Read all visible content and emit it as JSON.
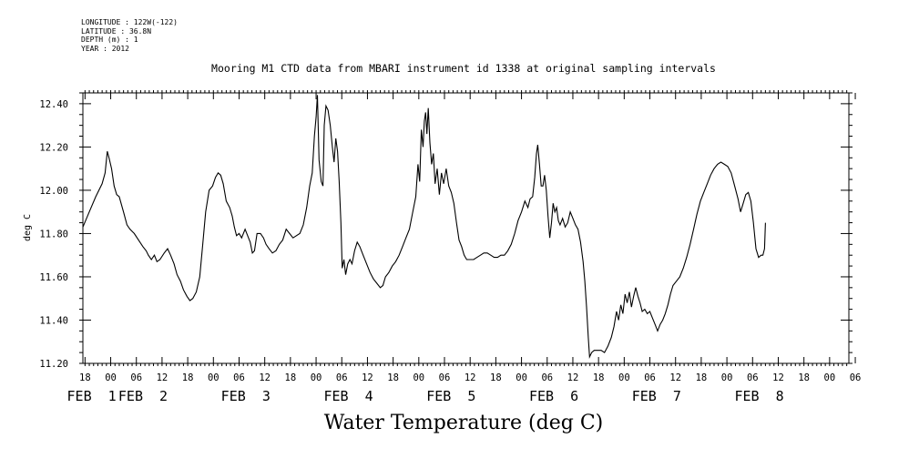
{
  "meta": {
    "longitude": "LONGITUDE : 122W(-122)",
    "latitude": "LATITUDE : 36.8N",
    "depth": "DEPTH (m) : 1",
    "year": "YEAR : 2012"
  },
  "chart_data": {
    "type": "line",
    "title": "Mooring M1 CTD data from MBARI instrument id 1338 at original sampling intervals",
    "xlabel": "Water Temperature (deg C)",
    "ylabel": "deg C",
    "ylim": [
      11.2,
      12.45
    ],
    "xlim": [
      -6.5,
      172.5
    ],
    "x_unit": "hours since FEB 1 00:00 (2012)",
    "grid": false,
    "yticks": [
      "11.20",
      "11.40",
      "11.60",
      "11.80",
      "12.00",
      "12.20",
      "12.40"
    ],
    "xtick_hours": [
      "18",
      "00",
      "06",
      "12",
      "18",
      "00",
      "06",
      "12",
      "18",
      "00",
      "06",
      "12",
      "18",
      "00",
      "06",
      "12",
      "18",
      "00",
      "06",
      "12",
      "18",
      "00",
      "06",
      "12",
      "18",
      "00",
      "06",
      "12",
      "18",
      "00",
      "06"
    ],
    "date_labels": [
      {
        "text": "FEB  1",
        "hour": 0
      },
      {
        "text": "FEB  2",
        "hour": 12
      },
      {
        "text": "FEB  3",
        "hour": 36
      },
      {
        "text": "FEB  4",
        "hour": 60
      },
      {
        "text": "FEB  5",
        "hour": 84
      },
      {
        "text": "FEB  6",
        "hour": 108
      },
      {
        "text": "FEB  7",
        "hour": 132
      },
      {
        "text": "FEB  8",
        "hour": 156
      }
    ],
    "series": [
      {
        "points": [
          [
            -6.5,
            11.83
          ],
          [
            -5,
            11.9
          ],
          [
            -3.5,
            11.97
          ],
          [
            -2,
            12.03
          ],
          [
            -1.3,
            12.08
          ],
          [
            -0.8,
            12.18
          ],
          [
            -0.4,
            12.15
          ],
          [
            0.2,
            12.1
          ],
          [
            0.8,
            12.02
          ],
          [
            1.4,
            11.98
          ],
          [
            2,
            11.97
          ],
          [
            3,
            11.9
          ],
          [
            3.8,
            11.84
          ],
          [
            4.5,
            11.82
          ],
          [
            5.5,
            11.8
          ],
          [
            6.5,
            11.77
          ],
          [
            7.5,
            11.74
          ],
          [
            8.3,
            11.72
          ],
          [
            8.8,
            11.7
          ],
          [
            9.5,
            11.68
          ],
          [
            10.2,
            11.7
          ],
          [
            10.8,
            11.67
          ],
          [
            11.5,
            11.68
          ],
          [
            12.5,
            11.71
          ],
          [
            13.3,
            11.73
          ],
          [
            14,
            11.7
          ],
          [
            14.8,
            11.66
          ],
          [
            15.5,
            11.61
          ],
          [
            16.3,
            11.58
          ],
          [
            17,
            11.54
          ],
          [
            17.8,
            11.51
          ],
          [
            18.5,
            11.49
          ],
          [
            19.2,
            11.5
          ],
          [
            20,
            11.53
          ],
          [
            20.8,
            11.6
          ],
          [
            21.5,
            11.75
          ],
          [
            22.2,
            11.9
          ],
          [
            23,
            12.0
          ],
          [
            23.8,
            12.02
          ],
          [
            24.5,
            12.06
          ],
          [
            25.1,
            12.08
          ],
          [
            25.7,
            12.07
          ],
          [
            26.3,
            12.03
          ],
          [
            27,
            11.95
          ],
          [
            27.8,
            11.92
          ],
          [
            28.4,
            11.88
          ],
          [
            28.9,
            11.83
          ],
          [
            29.4,
            11.79
          ],
          [
            30,
            11.8
          ],
          [
            30.6,
            11.78
          ],
          [
            31.4,
            11.82
          ],
          [
            32,
            11.79
          ],
          [
            32.6,
            11.76
          ],
          [
            33.1,
            11.71
          ],
          [
            33.6,
            11.72
          ],
          [
            34.2,
            11.8
          ],
          [
            35,
            11.8
          ],
          [
            35.7,
            11.78
          ],
          [
            36.3,
            11.75
          ],
          [
            37,
            11.73
          ],
          [
            37.8,
            11.71
          ],
          [
            38.6,
            11.72
          ],
          [
            39.4,
            11.75
          ],
          [
            40.2,
            11.77
          ],
          [
            41,
            11.82
          ],
          [
            41.8,
            11.8
          ],
          [
            42.6,
            11.78
          ],
          [
            43.4,
            11.79
          ],
          [
            44.2,
            11.8
          ],
          [
            45,
            11.84
          ],
          [
            45.8,
            11.92
          ],
          [
            46.5,
            12.02
          ],
          [
            47.1,
            12.08
          ],
          [
            47.6,
            12.25
          ],
          [
            48,
            12.34
          ],
          [
            48.3,
            12.44
          ],
          [
            48.7,
            12.14
          ],
          [
            49.2,
            12.04
          ],
          [
            49.6,
            12.02
          ],
          [
            49.9,
            12.3
          ],
          [
            50.3,
            12.39
          ],
          [
            50.8,
            12.37
          ],
          [
            51.3,
            12.3
          ],
          [
            51.8,
            12.2
          ],
          [
            52.2,
            12.13
          ],
          [
            52.6,
            12.24
          ],
          [
            53,
            12.18
          ],
          [
            53.4,
            12.04
          ],
          [
            53.8,
            11.85
          ],
          [
            54.1,
            11.64
          ],
          [
            54.5,
            11.68
          ],
          [
            54.9,
            11.61
          ],
          [
            55.4,
            11.66
          ],
          [
            55.9,
            11.68
          ],
          [
            56.4,
            11.66
          ],
          [
            57,
            11.72
          ],
          [
            57.6,
            11.76
          ],
          [
            58.2,
            11.74
          ],
          [
            59,
            11.7
          ],
          [
            59.8,
            11.66
          ],
          [
            60.6,
            11.62
          ],
          [
            61.4,
            11.59
          ],
          [
            62.2,
            11.57
          ],
          [
            63,
            11.55
          ],
          [
            63.6,
            11.56
          ],
          [
            64.2,
            11.6
          ],
          [
            65,
            11.62
          ],
          [
            65.8,
            11.65
          ],
          [
            66.6,
            11.67
          ],
          [
            67.4,
            11.7
          ],
          [
            68.2,
            11.74
          ],
          [
            69,
            11.78
          ],
          [
            69.8,
            11.82
          ],
          [
            70.6,
            11.9
          ],
          [
            71.3,
            11.97
          ],
          [
            71.8,
            12.12
          ],
          [
            72.2,
            12.04
          ],
          [
            72.6,
            12.28
          ],
          [
            73,
            12.2
          ],
          [
            73.3,
            12.32
          ],
          [
            73.6,
            12.36
          ],
          [
            73.9,
            12.26
          ],
          [
            74.2,
            12.38
          ],
          [
            74.6,
            12.22
          ],
          [
            75,
            12.12
          ],
          [
            75.4,
            12.17
          ],
          [
            75.8,
            12.03
          ],
          [
            76.3,
            12.1
          ],
          [
            76.8,
            11.98
          ],
          [
            77.3,
            12.08
          ],
          [
            77.8,
            12.03
          ],
          [
            78.4,
            12.1
          ],
          [
            79,
            12.02
          ],
          [
            79.6,
            11.99
          ],
          [
            80.2,
            11.94
          ],
          [
            80.8,
            11.85
          ],
          [
            81.4,
            11.77
          ],
          [
            82,
            11.74
          ],
          [
            82.6,
            11.7
          ],
          [
            83.2,
            11.68
          ],
          [
            84,
            11.68
          ],
          [
            84.8,
            11.68
          ],
          [
            85.6,
            11.69
          ],
          [
            86.4,
            11.7
          ],
          [
            87.2,
            11.71
          ],
          [
            88,
            11.71
          ],
          [
            88.8,
            11.7
          ],
          [
            89.6,
            11.69
          ],
          [
            90.4,
            11.69
          ],
          [
            91.2,
            11.7
          ],
          [
            92,
            11.7
          ],
          [
            92.8,
            11.72
          ],
          [
            93.6,
            11.75
          ],
          [
            94.4,
            11.8
          ],
          [
            95.2,
            11.86
          ],
          [
            96,
            11.9
          ],
          [
            96.8,
            11.95
          ],
          [
            97.5,
            11.92
          ],
          [
            98,
            11.96
          ],
          [
            98.6,
            11.97
          ],
          [
            99.1,
            12.06
          ],
          [
            99.5,
            12.17
          ],
          [
            99.8,
            12.21
          ],
          [
            100.2,
            12.12
          ],
          [
            100.6,
            12.02
          ],
          [
            101,
            12.02
          ],
          [
            101.4,
            12.07
          ],
          [
            101.8,
            12.0
          ],
          [
            102.2,
            11.88
          ],
          [
            102.6,
            11.78
          ],
          [
            103,
            11.85
          ],
          [
            103.4,
            11.94
          ],
          [
            103.8,
            11.9
          ],
          [
            104.2,
            11.92
          ],
          [
            104.6,
            11.86
          ],
          [
            105,
            11.84
          ],
          [
            105.6,
            11.87
          ],
          [
            106.2,
            11.83
          ],
          [
            106.8,
            11.85
          ],
          [
            107.4,
            11.9
          ],
          [
            108,
            11.87
          ],
          [
            108.6,
            11.84
          ],
          [
            109.2,
            11.82
          ],
          [
            109.8,
            11.76
          ],
          [
            110.4,
            11.67
          ],
          [
            110.8,
            11.58
          ],
          [
            111.2,
            11.46
          ],
          [
            111.6,
            11.32
          ],
          [
            111.9,
            11.23
          ],
          [
            112.4,
            11.25
          ],
          [
            113,
            11.26
          ],
          [
            113.8,
            11.26
          ],
          [
            114.6,
            11.26
          ],
          [
            115.4,
            11.25
          ],
          [
            116.2,
            11.28
          ],
          [
            117,
            11.32
          ],
          [
            117.6,
            11.37
          ],
          [
            118.2,
            11.44
          ],
          [
            118.7,
            11.4
          ],
          [
            119.2,
            11.47
          ],
          [
            119.7,
            11.43
          ],
          [
            120.2,
            11.52
          ],
          [
            120.7,
            11.48
          ],
          [
            121.2,
            11.53
          ],
          [
            121.7,
            11.46
          ],
          [
            122.2,
            11.51
          ],
          [
            122.7,
            11.55
          ],
          [
            123.2,
            11.51
          ],
          [
            123.7,
            11.48
          ],
          [
            124.2,
            11.44
          ],
          [
            124.8,
            11.45
          ],
          [
            125.4,
            11.43
          ],
          [
            126,
            11.44
          ],
          [
            126.6,
            11.41
          ],
          [
            127.2,
            11.38
          ],
          [
            127.8,
            11.35
          ],
          [
            128.4,
            11.38
          ],
          [
            129,
            11.4
          ],
          [
            129.6,
            11.43
          ],
          [
            130.2,
            11.47
          ],
          [
            130.8,
            11.52
          ],
          [
            131.4,
            11.56
          ],
          [
            132.2,
            11.58
          ],
          [
            133,
            11.6
          ],
          [
            133.8,
            11.64
          ],
          [
            134.6,
            11.69
          ],
          [
            135.4,
            11.75
          ],
          [
            136.2,
            11.82
          ],
          [
            137,
            11.89
          ],
          [
            137.8,
            11.95
          ],
          [
            138.6,
            11.99
          ],
          [
            139.4,
            12.03
          ],
          [
            140.2,
            12.07
          ],
          [
            141,
            12.1
          ],
          [
            141.8,
            12.12
          ],
          [
            142.6,
            12.13
          ],
          [
            143.4,
            12.12
          ],
          [
            144.2,
            12.11
          ],
          [
            145,
            12.08
          ],
          [
            145.8,
            12.02
          ],
          [
            146.6,
            11.96
          ],
          [
            147.2,
            11.9
          ],
          [
            147.8,
            11.94
          ],
          [
            148.4,
            11.98
          ],
          [
            149,
            11.99
          ],
          [
            149.6,
            11.95
          ],
          [
            150.2,
            11.85
          ],
          [
            150.8,
            11.73
          ],
          [
            151.4,
            11.69
          ],
          [
            152,
            11.7
          ],
          [
            152.4,
            11.7
          ],
          [
            152.8,
            11.73
          ],
          [
            153,
            11.85
          ]
        ]
      }
    ]
  }
}
